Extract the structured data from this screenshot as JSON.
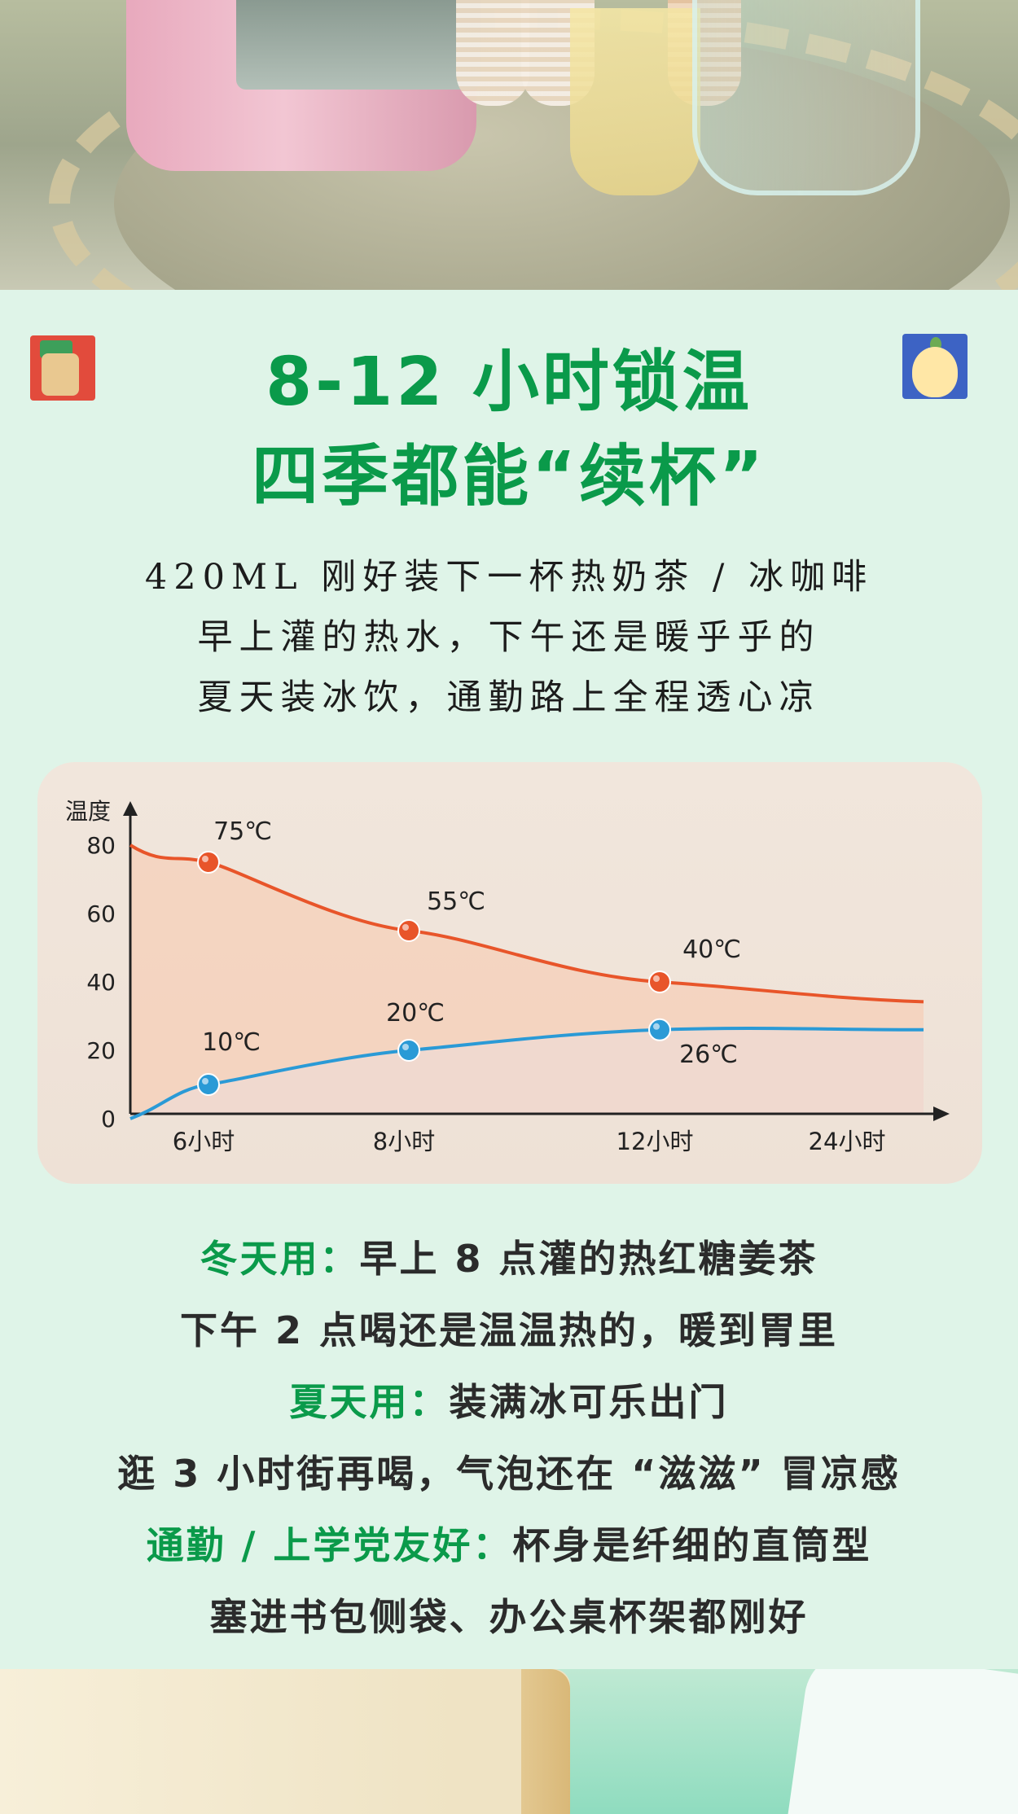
{
  "header": {
    "title_line1": "8-12 小时锁温",
    "title_line2": "四季都能“续杯”"
  },
  "description": {
    "line1": "420ML 刚好装下一杯热奶茶 / 冰咖啡",
    "line2": "早上灌的热水，下午还是暖乎乎的",
    "line3": "夏天装冰饮，通勤路上全程透心凉"
  },
  "colors": {
    "title_green": "#0a9a4a",
    "hot_series": "#e8552a",
    "cold_series": "#2a9ad6",
    "card_bg": "#f1e6dc"
  },
  "chart_data": {
    "type": "line",
    "ylabel": "温度",
    "xlabel": "",
    "ylim": [
      0,
      80
    ],
    "yticks": [
      0,
      20,
      40,
      60,
      80
    ],
    "x_tick_labels": [
      "6小时",
      "8小时",
      "12小时",
      "24小时"
    ],
    "series": [
      {
        "color": "#e8552a",
        "points": [
          {
            "x": "6小时",
            "y": 75,
            "label": "75℃"
          },
          {
            "x": "8小时",
            "y": 55,
            "label": "55℃"
          },
          {
            "x": "12小时",
            "y": 40,
            "label": "40℃"
          }
        ]
      },
      {
        "color": "#2a9ad6",
        "points": [
          {
            "x": "6小时",
            "y": 10,
            "label": "10℃"
          },
          {
            "x": "8小时",
            "y": 20,
            "label": "20℃"
          },
          {
            "x": "12小时",
            "y": 26,
            "label": "26℃"
          }
        ]
      }
    ],
    "grid": false,
    "legend": "none"
  },
  "usage": {
    "winter_label": "冬天用：",
    "winter_line1": "早上 8 点灌的热红糖姜茶",
    "winter_line2": "下午 2 点喝还是温温热的，暖到胃里",
    "summer_label": "夏天用：",
    "summer_line1": "装满冰可乐出门",
    "summer_line2": "逛 3 小时街再喝，气泡还在 “滋滋” 冒凉感",
    "commute_label": "通勤 / 上学党友好：",
    "commute_line1": "杯身是纤细的直筒型",
    "commute_line2": "塞进书包侧袋、办公桌杯架都刚好"
  }
}
